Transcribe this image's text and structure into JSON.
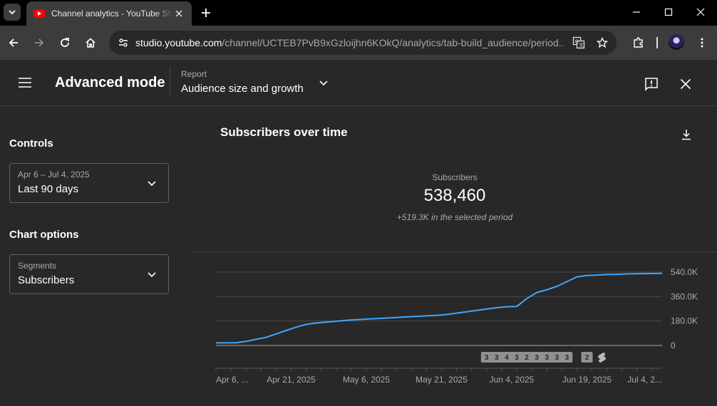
{
  "browser": {
    "tab_title": "Channel analytics - YouTube Studio",
    "url_host": "studio.youtube.com",
    "url_path": "/channel/UCTEB7PvB9xGzloijhn6KOkQ/analytics/tab-build_audience/period..."
  },
  "header": {
    "mode_title": "Advanced mode",
    "report_label": "Report",
    "report_value": "Audience size and growth"
  },
  "controls": {
    "title": "Controls",
    "date_range_label": "Apr 6 – Jul 4, 2025",
    "date_range_value": "Last 90 days"
  },
  "chart_options": {
    "title": "Chart options",
    "segments_label": "Segments",
    "segments_value": "Subscribers"
  },
  "metric": {
    "card_title": "Subscribers over time",
    "label": "Subscribers",
    "value": "538,460",
    "delta": "+519.3K in the selected period"
  },
  "colors": {
    "line": "#3ea6ff",
    "marker_bg": "#909090"
  },
  "chart_data": {
    "type": "line",
    "title": "Subscribers over time",
    "x_tick_labels": [
      "Apr 6, ...",
      "Apr 21, 2025",
      "May 6, 2025",
      "May 21, 2025",
      "Jun 4, 2025",
      "Jun 19, 2025",
      "Jul 4, 2..."
    ],
    "y_tick_labels": [
      "0",
      "180.0K",
      "360.0K",
      "540.0K"
    ],
    "ylim": [
      0,
      540000
    ],
    "y_grid": true,
    "series": [
      {
        "x": [
          "2025-04-06",
          "2025-04-08",
          "2025-04-10",
          "2025-04-12",
          "2025-04-14",
          "2025-04-16",
          "2025-04-18",
          "2025-04-20",
          "2025-04-22",
          "2025-04-24",
          "2025-04-26",
          "2025-04-28",
          "2025-04-30",
          "2025-05-02",
          "2025-05-04",
          "2025-05-06",
          "2025-05-08",
          "2025-05-10",
          "2025-05-12",
          "2025-05-14",
          "2025-05-16",
          "2025-05-18",
          "2025-05-20",
          "2025-05-22",
          "2025-05-24",
          "2025-05-26",
          "2025-05-28",
          "2025-05-30",
          "2025-06-01",
          "2025-06-03",
          "2025-06-05",
          "2025-06-07",
          "2025-06-09",
          "2025-06-11",
          "2025-06-13",
          "2025-06-15",
          "2025-06-17",
          "2025-06-19",
          "2025-06-21",
          "2025-06-23",
          "2025-06-25",
          "2025-06-27",
          "2025-06-29",
          "2025-07-01",
          "2025-07-04"
        ],
        "y": [
          19000,
          19000,
          20000,
          30000,
          45000,
          60000,
          85000,
          110000,
          135000,
          155000,
          165000,
          172000,
          178000,
          185000,
          190000,
          194000,
          198000,
          202000,
          206000,
          210000,
          214000,
          218000,
          222000,
          228000,
          238000,
          248000,
          258000,
          268000,
          278000,
          285000,
          287000,
          345000,
          390000,
          410000,
          435000,
          470000,
          505000,
          515000,
          518000,
          522000,
          524000,
          527000,
          528000,
          529000,
          530500
        ]
      }
    ],
    "event_markers": [
      {
        "date": "2025-05-30",
        "label": "3"
      },
      {
        "date": "2025-06-01",
        "label": "3"
      },
      {
        "date": "2025-06-03",
        "label": "4"
      },
      {
        "date": "2025-06-05",
        "label": "3"
      },
      {
        "date": "2025-06-07",
        "label": "2"
      },
      {
        "date": "2025-06-09",
        "label": "3"
      },
      {
        "date": "2025-06-11",
        "label": "3"
      },
      {
        "date": "2025-06-13",
        "label": "3"
      },
      {
        "date": "2025-06-15",
        "label": "3"
      },
      {
        "date": "2025-06-19",
        "label": "2"
      },
      {
        "date": "2025-06-22",
        "label": "shorts-icon"
      }
    ]
  }
}
